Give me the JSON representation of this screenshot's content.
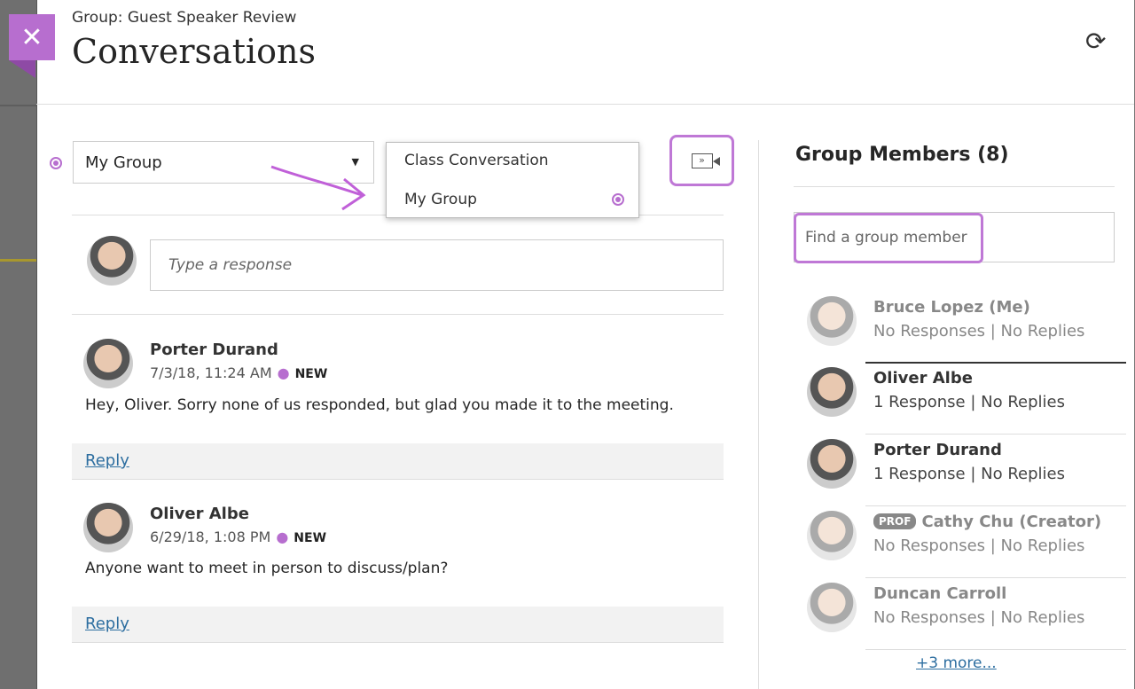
{
  "header": {
    "subtitle": "Group: Guest Speaker Review",
    "title": "Conversations",
    "close": "✕",
    "refresh": "⟳"
  },
  "conversation_select": {
    "value": "My Group",
    "options": [
      "Class Conversation",
      "My Group"
    ],
    "selected": "My Group"
  },
  "response": {
    "placeholder": "Type a response"
  },
  "posts": [
    {
      "author": "Porter Durand",
      "date": "7/3/18, 11:24 AM",
      "badge": "NEW",
      "text": "Hey, Oliver. Sorry none of us responded, but glad you made it to the meeting.",
      "reply": "Reply"
    },
    {
      "author": "Oliver Albe",
      "date": "6/29/18, 1:08 PM",
      "badge": "NEW",
      "text": "Anyone want to meet in person to discuss/plan?",
      "reply": "Reply"
    }
  ],
  "members": {
    "title": "Group Members (8)",
    "search_placeholder": "Find a group member",
    "list": [
      {
        "name": "Bruce Lopez (Me)",
        "responses": "No Responses",
        "replies": "No Replies"
      },
      {
        "name": "Oliver Albe",
        "responses": "1 Response",
        "replies": "No Replies"
      },
      {
        "name": "Porter Durand",
        "responses": "1 Response",
        "replies": "No Replies"
      },
      {
        "name": "Cathy Chu (Creator)",
        "badge": "PROF",
        "responses": "No Responses",
        "replies": "No Replies"
      },
      {
        "name": "Duncan Carroll",
        "responses": "No Responses",
        "replies": "No Replies"
      }
    ],
    "more": "+3 more..."
  },
  "colors": {
    "accent": "#b76ecf",
    "link": "#2d6ea0"
  }
}
